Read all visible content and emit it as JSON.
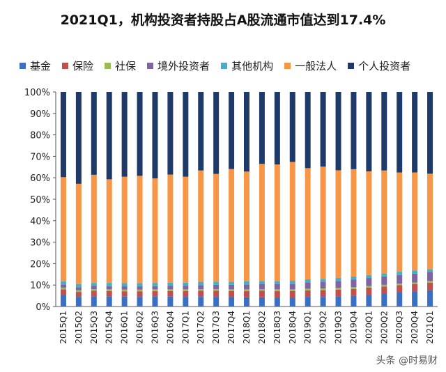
{
  "title": "2021Q1，机构投资者持股占A股流通市值达到17.4%",
  "watermark": "头条 @时易财",
  "legend": [
    {
      "label": "基金",
      "color": "#3a6fc4"
    },
    {
      "label": "保险",
      "color": "#c0504d"
    },
    {
      "label": "社保",
      "color": "#9bbb59"
    },
    {
      "label": "境外投资者",
      "color": "#8064a2"
    },
    {
      "label": "其他机构",
      "color": "#4bacc6"
    },
    {
      "label": "一般法人",
      "color": "#f79646"
    },
    {
      "label": "个人投资者",
      "color": "#1f3a68"
    }
  ],
  "chart_data": {
    "type": "bar",
    "stacked": true,
    "title": "2021Q1，机构投资者持股占A股流通市值达到17.4%",
    "xlabel": "",
    "ylabel": "",
    "ylim": [
      0,
      100
    ],
    "y_ticks": [
      "0%",
      "10%",
      "20%",
      "30%",
      "40%",
      "50%",
      "60%",
      "70%",
      "80%",
      "90%",
      "100%"
    ],
    "grid": false,
    "legend_position": "top",
    "categories": [
      "2015Q1",
      "2015Q2",
      "2015Q3",
      "2015Q4",
      "2016Q1",
      "2016Q2",
      "2016Q3",
      "2016Q4",
      "2017Q1",
      "2017Q2",
      "2017Q3",
      "2017Q4",
      "2018Q1",
      "2018Q2",
      "2018Q3",
      "2018Q4",
      "2019Q1",
      "2019Q2",
      "2019Q3",
      "2019Q4",
      "2020Q1",
      "2020Q2",
      "2020Q3",
      "2020Q4",
      "2021Q1"
    ],
    "series": [
      {
        "name": "基金",
        "color": "#3a6fc4",
        "values": [
          5.5,
          4.5,
          4.8,
          4.8,
          4.6,
          4.5,
          4.6,
          4.6,
          4.5,
          4.5,
          4.5,
          4.4,
          4.3,
          4.3,
          4.2,
          4.2,
          4.5,
          4.5,
          4.8,
          5.0,
          5.5,
          6.0,
          6.5,
          7.0,
          7.6
        ]
      },
      {
        "name": "保险",
        "color": "#c0504d",
        "values": [
          2.5,
          2.3,
          2.5,
          2.4,
          2.5,
          2.6,
          2.6,
          2.6,
          2.7,
          2.8,
          2.8,
          2.8,
          2.9,
          3.0,
          3.0,
          3.0,
          3.0,
          3.1,
          3.1,
          3.2,
          3.3,
          3.3,
          3.4,
          3.4,
          3.5
        ]
      },
      {
        "name": "社保",
        "color": "#9bbb59",
        "values": [
          0.8,
          0.8,
          0.8,
          0.8,
          0.8,
          0.8,
          0.8,
          0.8,
          0.8,
          0.8,
          0.8,
          0.8,
          0.8,
          0.8,
          0.8,
          0.8,
          0.8,
          0.8,
          0.8,
          0.8,
          0.8,
          0.8,
          0.8,
          0.8,
          0.8
        ]
      },
      {
        "name": "境外投资者",
        "color": "#8064a2",
        "values": [
          1.5,
          1.4,
          1.5,
          1.5,
          1.5,
          1.5,
          1.5,
          1.6,
          1.7,
          1.9,
          2.0,
          2.1,
          2.2,
          2.3,
          2.4,
          2.5,
          3.0,
          3.1,
          3.2,
          3.5,
          3.7,
          3.9,
          4.0,
          4.1,
          4.2
        ]
      },
      {
        "name": "其他机构",
        "color": "#4bacc6",
        "values": [
          1.5,
          1.5,
          1.4,
          1.5,
          1.5,
          1.5,
          1.5,
          1.5,
          1.4,
          1.5,
          1.5,
          1.4,
          1.5,
          1.5,
          1.5,
          1.5,
          1.4,
          1.4,
          1.5,
          1.5,
          1.4,
          1.4,
          1.5,
          1.5,
          1.3
        ]
      },
      {
        "name": "一般法人",
        "color": "#f79646",
        "values": [
          48.5,
          46.7,
          50.4,
          48.3,
          49.6,
          50.0,
          48.7,
          50.4,
          49.4,
          51.9,
          50.2,
          52.6,
          51.2,
          54.6,
          54.3,
          55.4,
          51.8,
          52.3,
          50.1,
          50.0,
          48.3,
          48.0,
          46.3,
          45.7,
          44.5
        ]
      },
      {
        "name": "个人投资者",
        "color": "#1f3a68",
        "values": [
          39.7,
          42.8,
          38.6,
          40.7,
          39.5,
          39.1,
          40.3,
          38.5,
          39.5,
          36.6,
          38.2,
          35.9,
          37.1,
          33.5,
          33.8,
          32.6,
          35.5,
          34.8,
          36.5,
          36.0,
          37.0,
          36.6,
          37.5,
          37.5,
          38.1
        ]
      }
    ]
  }
}
